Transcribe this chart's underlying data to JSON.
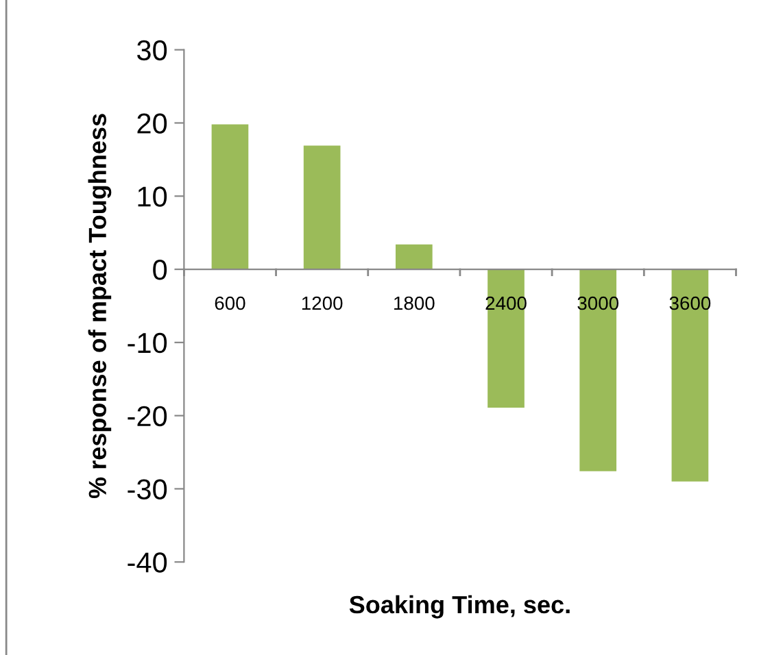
{
  "chart_data": {
    "type": "bar",
    "xlabel": "Soaking Time, sec.",
    "ylabel": "% response of mpact Toughness",
    "categories": [
      "600",
      "1200",
      "1800",
      "2400",
      "3000",
      "3600"
    ],
    "values": [
      19.8,
      16.9,
      3.4,
      -18.9,
      -27.6,
      -29.0
    ],
    "color": "#9bbb59",
    "ylim": [
      -40,
      30
    ],
    "yticks": [
      -40,
      -30,
      -20,
      -10,
      0,
      10,
      20,
      30
    ],
    "grid": false,
    "legend": false
  }
}
